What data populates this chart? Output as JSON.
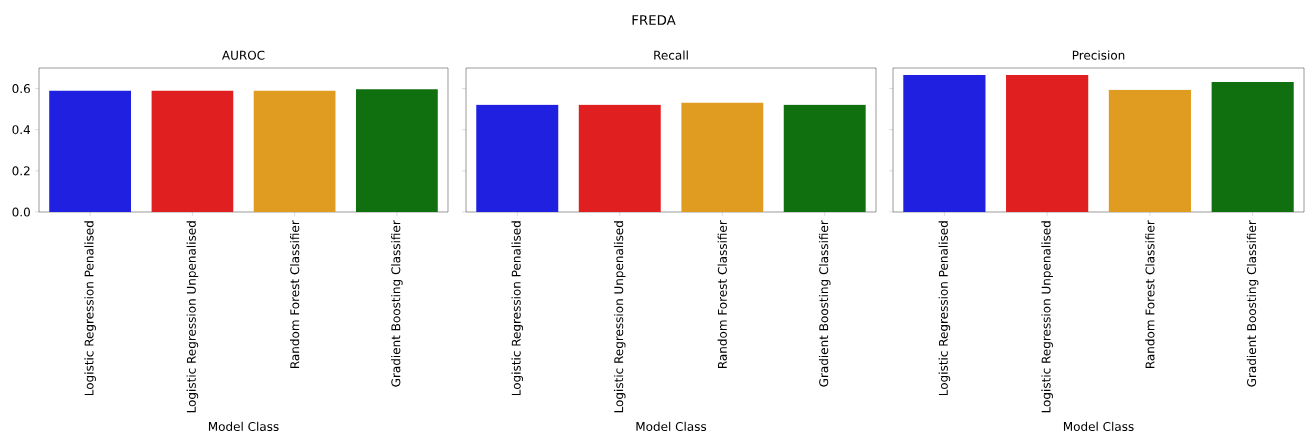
{
  "chart_data": [
    {
      "type": "bar",
      "title": "AUROC",
      "xlabel": "Model Class",
      "annotations": [
        "FREDA"
      ],
      "categories": [
        "Logistic Regression Penalised",
        "Logistic Regression Unpenalised",
        "Random Forest Classifier",
        "Gradient Boosting Classifier"
      ],
      "values": [
        0.589,
        0.589,
        0.589,
        0.597
      ],
      "colors": [
        "#2020e0",
        "#e02020",
        "#e09c20",
        "#107010"
      ],
      "ylim": [
        0,
        0.7
      ],
      "yticks": [
        {
          "value": 0,
          "label": "0.0"
        },
        {
          "value": 0.2,
          "label": "0.2"
        },
        {
          "value": 0.4,
          "label": "0.4"
        },
        {
          "value": 0.6,
          "label": "0.6"
        }
      ]
    },
    {
      "type": "bar",
      "title": "Recall",
      "xlabel": "Model Class",
      "tick_labels": "x",
      "categories": [
        "Logistic Regression Penalised",
        "Logistic Regression Unpenalised",
        "Random Forest Classifier",
        "Gradient Boosting Classifier"
      ],
      "values": [
        0.521,
        0.521,
        0.531,
        0.521
      ],
      "colors": [
        "#2020e0",
        "#e02020",
        "#e09c20",
        "#107010"
      ],
      "ylim": [
        0,
        0.7
      ],
      "yticks": [
        0,
        0.2,
        0.4,
        0.6
      ]
    },
    {
      "type": "bar",
      "title": "Precision",
      "xlabel": "Model Class",
      "tick_labels": "x",
      "categories": [
        "Logistic Regression Penalised",
        "Logistic Regression Unpenalised",
        "Random Forest Classifier",
        "Gradient Boosting Classifier"
      ],
      "values": [
        0.666,
        0.666,
        0.594,
        0.632
      ],
      "colors": [
        "#2020e0",
        "#e02020",
        "#e09c20",
        "#107010"
      ],
      "ylim": [
        0,
        0.7
      ],
      "yticks": [
        0,
        0.2,
        0.4,
        0.6
      ]
    }
  ]
}
